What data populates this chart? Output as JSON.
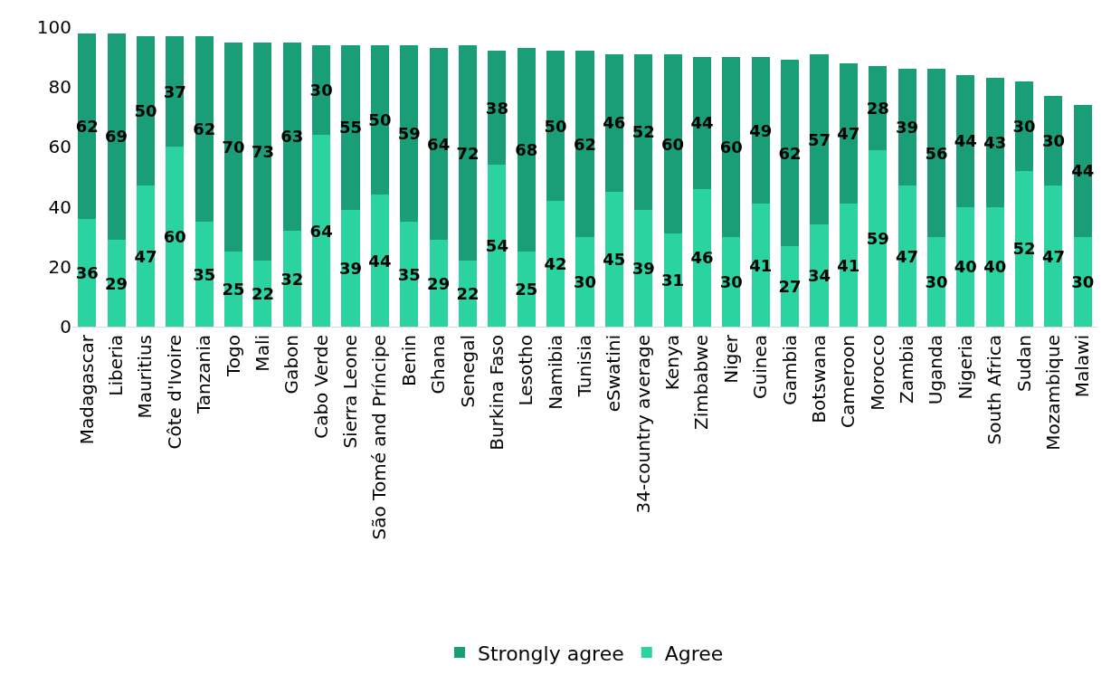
{
  "chart_data": {
    "type": "bar",
    "stacked": true,
    "data_labels": true,
    "legend": "bottom",
    "grid": false,
    "ylim": [
      0,
      100
    ],
    "yticks": [
      0,
      20,
      40,
      60,
      80,
      100
    ],
    "categories": [
      "Madagascar",
      "Liberia",
      "Mauritius",
      "Côte d'Ivoire",
      "Tanzania",
      "Togo",
      "Mali",
      "Gabon",
      "Cabo Verde",
      "Sierra Leone",
      "São Tomé and Príncipe",
      "Benin",
      "Ghana",
      "Senegal",
      "Burkina Faso",
      "Lesotho",
      "Namibia",
      "Tunisia",
      "eSwatini",
      "34-country average",
      "Kenya",
      "Zimbabwe",
      "Niger",
      "Guinea",
      "Gambia",
      "Botswana",
      "Cameroon",
      "Morocco",
      "Zambia",
      "Uganda",
      "Nigeria",
      "South Africa",
      "Sudan",
      "Mozambique",
      "Malawi"
    ],
    "series": [
      {
        "name": "Agree",
        "color": "#2ad3a0",
        "values": [
          36,
          29,
          47,
          60,
          35,
          25,
          22,
          32,
          64,
          39,
          44,
          35,
          29,
          22,
          54,
          25,
          42,
          30,
          45,
          39,
          31,
          46,
          30,
          41,
          27,
          34,
          41,
          59,
          47,
          30,
          40,
          40,
          52,
          47,
          30
        ]
      },
      {
        "name": "Strongly agree",
        "color": "#1a9e78",
        "values": [
          62,
          69,
          50,
          37,
          62,
          70,
          73,
          63,
          30,
          55,
          50,
          59,
          64,
          72,
          38,
          68,
          50,
          62,
          46,
          52,
          60,
          44,
          60,
          49,
          62,
          57,
          47,
          28,
          39,
          56,
          44,
          43,
          30,
          30,
          44
        ]
      }
    ]
  }
}
